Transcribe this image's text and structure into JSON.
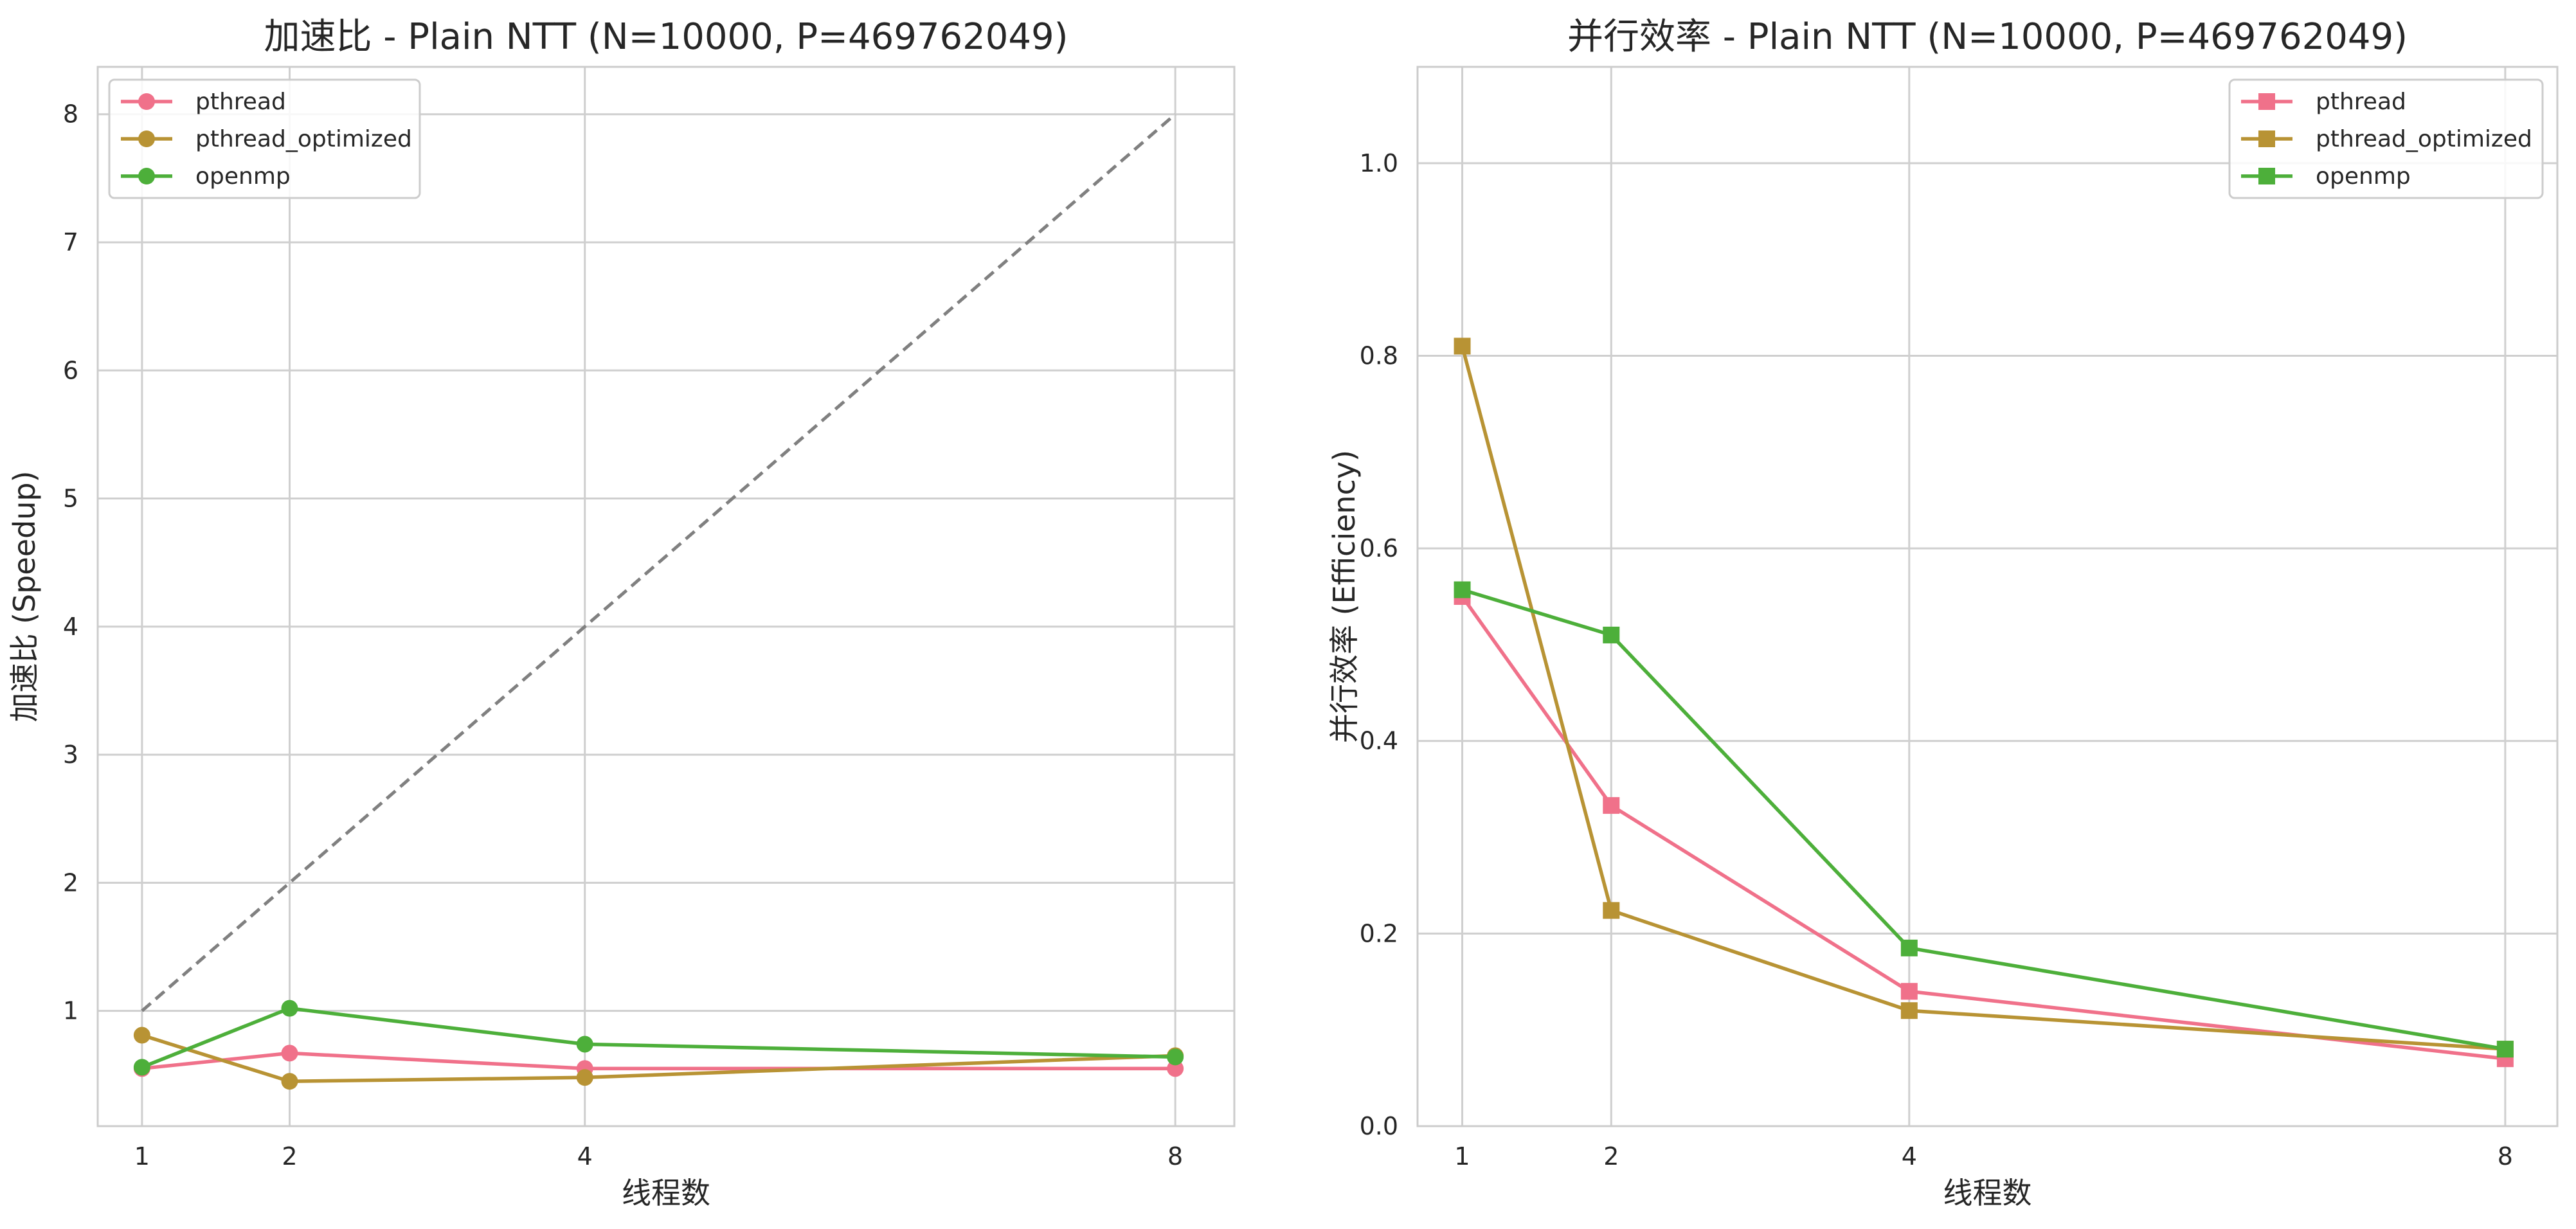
{
  "chart_data": [
    {
      "type": "line",
      "title": "加速比 - Plain NTT (N=10000, P=469762049)",
      "xlabel": "线程数",
      "ylabel": "加速比 (Speedup)",
      "x": [
        1,
        2,
        4,
        8
      ],
      "xlim": [
        0.7,
        8.4
      ],
      "ylim": [
        0.1,
        8.37
      ],
      "yticks": [
        1,
        2,
        3,
        4,
        5,
        6,
        7,
        8
      ],
      "marker": "circle",
      "grid": true,
      "legend": "top-left",
      "series": [
        {
          "name": "pthread",
          "color": "#f0718a",
          "values": [
            0.55,
            0.67,
            0.55,
            0.55
          ]
        },
        {
          "name": "pthread_optimized",
          "color": "#b89334",
          "values": [
            0.81,
            0.45,
            0.48,
            0.65
          ]
        },
        {
          "name": "openmp",
          "color": "#4daf3a",
          "values": [
            0.56,
            1.02,
            0.74,
            0.64
          ]
        }
      ],
      "reference": {
        "color": "#808080",
        "x": [
          1,
          8
        ],
        "values": [
          1,
          8
        ]
      }
    },
    {
      "type": "line",
      "title": "并行效率 - Plain NTT (N=10000, P=469762049)",
      "xlabel": "线程数",
      "ylabel": "并行效率 (Efficiency)",
      "x": [
        1,
        2,
        4,
        8
      ],
      "xlim": [
        0.7,
        8.35
      ],
      "ylim": [
        0.0,
        1.1
      ],
      "yticks": [
        "0.0",
        "0.2",
        "0.4",
        "0.6",
        "0.8",
        "1.0"
      ],
      "marker": "square",
      "grid": true,
      "legend": "top-right",
      "series": [
        {
          "name": "pthread",
          "color": "#f0718a",
          "values": [
            0.55,
            0.333,
            0.14,
            0.07
          ]
        },
        {
          "name": "pthread_optimized",
          "color": "#b89334",
          "values": [
            0.81,
            0.224,
            0.12,
            0.08
          ]
        },
        {
          "name": "openmp",
          "color": "#4daf3a",
          "values": [
            0.557,
            0.51,
            0.185,
            0.08
          ]
        }
      ]
    }
  ]
}
